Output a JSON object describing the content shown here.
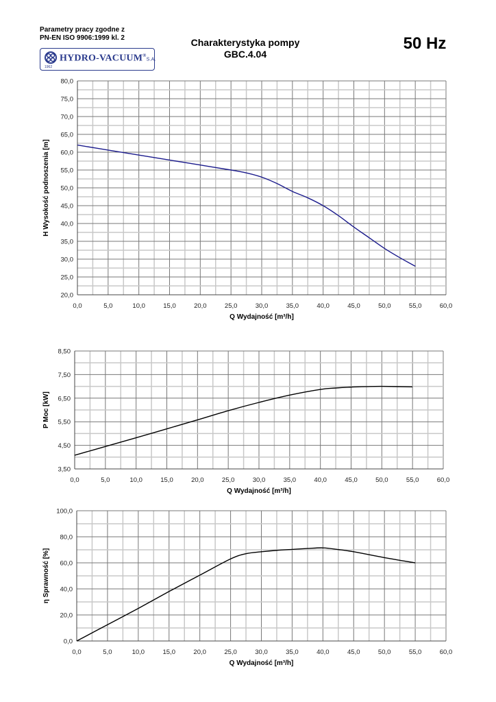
{
  "header": {
    "norm_line1": "Parametry pracy zgodne z",
    "norm_line2": "PN-EN ISO 9906:1999 kl. 2",
    "title_line1": "Charakterystyka pompy",
    "title_line2": "GBC.4.04",
    "frequency": "50 Hz",
    "logo": {
      "name": "HYDRO-VACUUM",
      "suffix": "S.A.",
      "registered": "®",
      "year": "1962",
      "color": "#2a3a8c"
    }
  },
  "chart_data": [
    {
      "type": "line",
      "title": "",
      "xlabel": "Q Wydajność [m³/h]",
      "ylabel": "H  Wysokość podnoszenia [m]",
      "xlim": [
        0,
        60
      ],
      "ylim": [
        20,
        80
      ],
      "xticks": [
        "0,0",
        "5,0",
        "10,0",
        "15,0",
        "20,0",
        "25,0",
        "30,0",
        "35,0",
        "40,0",
        "45,0",
        "50,0",
        "55,0",
        "60,0"
      ],
      "yticks": [
        "20,0",
        "25,0",
        "30,0",
        "35,0",
        "40,0",
        "45,0",
        "50,0",
        "55,0",
        "60,0",
        "65,0",
        "70,0",
        "75,0",
        "80,0"
      ],
      "grid": true,
      "series": [
        {
          "name": "H",
          "color": "#1a1a8c",
          "x": [
            0,
            5,
            10,
            15,
            20,
            25,
            27.5,
            30,
            32.5,
            35,
            37.5,
            40,
            42.5,
            45,
            47.5,
            50,
            52.5,
            55
          ],
          "y": [
            62,
            60.6,
            59.2,
            57.8,
            56.4,
            55,
            54.2,
            53,
            51.2,
            49,
            47.2,
            45,
            42.2,
            39,
            36,
            33,
            30.4,
            28
          ]
        }
      ]
    },
    {
      "type": "line",
      "title": "",
      "xlabel": "Q Wydajność [m³/h]",
      "ylabel": "P  Moc [kW]",
      "xlim": [
        0,
        60
      ],
      "ylim": [
        3.5,
        8.5
      ],
      "xticks": [
        "0,0",
        "5,0",
        "10,0",
        "15,0",
        "20,0",
        "25,0",
        "30,0",
        "35,0",
        "40,0",
        "45,0",
        "50,0",
        "55,0",
        "60,0"
      ],
      "yticks": [
        "3,50",
        "4,50",
        "5,50",
        "6,50",
        "7,50",
        "8,50"
      ],
      "grid": true,
      "series": [
        {
          "name": "P",
          "color": "#000000",
          "x": [
            0,
            5,
            10,
            15,
            20,
            25,
            30,
            35,
            40,
            42.5,
            45,
            47.5,
            50,
            55
          ],
          "y": [
            4.08,
            4.45,
            4.82,
            5.2,
            5.58,
            5.97,
            6.32,
            6.63,
            6.87,
            6.93,
            6.97,
            6.99,
            7.0,
            6.98
          ]
        }
      ]
    },
    {
      "type": "line",
      "title": "",
      "xlabel": "Q Wydajność [m³/h]",
      "ylabel": "η Sprawność [%]",
      "xlim": [
        0,
        60
      ],
      "ylim": [
        0,
        100
      ],
      "xticks": [
        "0,0",
        "5,0",
        "10,0",
        "15,0",
        "20,0",
        "25,0",
        "30,0",
        "35,0",
        "40,0",
        "45,0",
        "50,0",
        "55,0",
        "60,0"
      ],
      "yticks": [
        "0,0",
        "20,0",
        "40,0",
        "60,0",
        "80,0",
        "100,0"
      ],
      "grid": true,
      "series": [
        {
          "name": "η",
          "color": "#000000",
          "x": [
            0,
            5,
            10,
            15,
            20,
            25,
            27.5,
            30,
            32.5,
            35,
            37.5,
            40,
            42.5,
            45,
            50,
            55
          ],
          "y": [
            0,
            12.5,
            25,
            38,
            50.5,
            63,
            67,
            68.5,
            69.6,
            70.3,
            71,
            71.5,
            70.2,
            68.5,
            64,
            60
          ]
        }
      ]
    }
  ]
}
